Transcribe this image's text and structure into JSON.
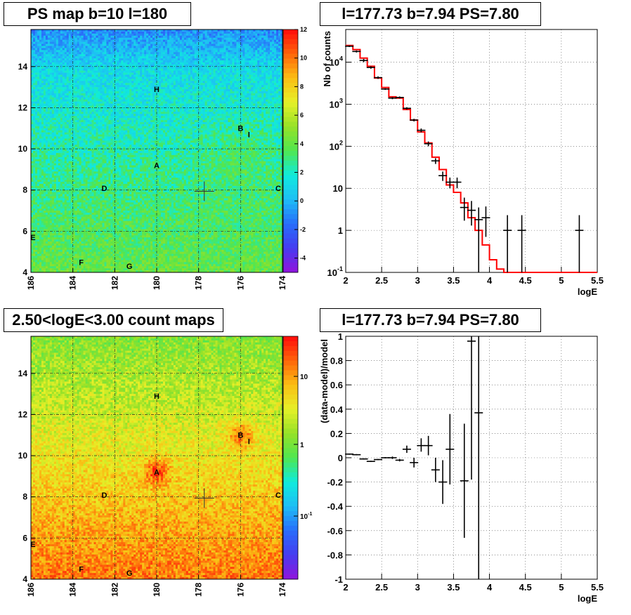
{
  "maps": {
    "top": {
      "title": "PS map b=10 l=180",
      "colorscale": "linear",
      "z_ticks": [
        "12",
        "10",
        "8",
        "6",
        "4",
        "2",
        "0",
        "-2",
        "-4"
      ],
      "z_range": [
        -5,
        12
      ],
      "x_ticks": [
        "186",
        "184",
        "182",
        "180",
        "178",
        "176",
        "174"
      ],
      "y_ticks": [
        "14",
        "12",
        "10",
        "8",
        "6",
        "4"
      ],
      "x_range": [
        186,
        174
      ],
      "y_range": [
        4,
        15.8
      ],
      "sources": [
        {
          "label": "H",
          "l": 180.0,
          "b": 12.9
        },
        {
          "label": "B",
          "l": 176.0,
          "b": 11.0
        },
        {
          "label": "I",
          "l": 175.6,
          "b": 10.7
        },
        {
          "label": "A",
          "l": 180.0,
          "b": 9.2
        },
        {
          "label": "D",
          "l": 182.5,
          "b": 8.1
        },
        {
          "label": "C",
          "l": 174.2,
          "b": 8.1
        },
        {
          "label": "E",
          "l": 185.9,
          "b": 5.7
        },
        {
          "label": "F",
          "l": 183.6,
          "b": 4.5
        },
        {
          "label": "G",
          "l": 181.3,
          "b": 4.3
        }
      ],
      "marker": {
        "l": 177.73,
        "b": 7.94
      }
    },
    "bottom": {
      "title": "2.50<logE<3.00 count maps",
      "colorscale": "log",
      "z_ticks": [
        "10",
        "1",
        "10^-1"
      ],
      "x_ticks": [
        "186",
        "184",
        "182",
        "180",
        "178",
        "176",
        "174"
      ],
      "y_ticks": [
        "14",
        "12",
        "10",
        "8",
        "6",
        "4"
      ],
      "sources": [
        {
          "label": "H",
          "l": 180.0,
          "b": 12.9
        },
        {
          "label": "B",
          "l": 176.0,
          "b": 11.0
        },
        {
          "label": "I",
          "l": 175.6,
          "b": 10.7
        },
        {
          "label": "A",
          "l": 180.0,
          "b": 9.2
        },
        {
          "label": "D",
          "l": 182.5,
          "b": 8.1
        },
        {
          "label": "C",
          "l": 174.2,
          "b": 8.1
        },
        {
          "label": "E",
          "l": 185.9,
          "b": 5.7
        },
        {
          "label": "F",
          "l": 183.6,
          "b": 4.5
        },
        {
          "label": "G",
          "l": 181.3,
          "b": 4.3
        }
      ],
      "marker": {
        "l": 177.73,
        "b": 7.94
      }
    }
  },
  "chart_data": [
    {
      "type": "line",
      "title": "l=177.73 b=7.94 PS=7.80",
      "xlabel": "logE",
      "ylabel": "Nb of counts",
      "xlim": [
        2,
        5.5
      ],
      "ylim": [
        0.1,
        60000
      ],
      "yscale": "log",
      "x_ticks": [
        "2",
        "2.5",
        "3",
        "3.5",
        "4",
        "4.5",
        "5",
        "5.5"
      ],
      "y_ticks": [
        "10^4",
        "10^3",
        "10^2",
        "10",
        "1",
        "10^-1"
      ],
      "grid": true,
      "series": [
        {
          "style": "points",
          "points": [
            {
              "x": 2.05,
              "y": 24000,
              "ylo": 23000,
              "yhi": 25000
            },
            {
              "x": 2.15,
              "y": 18000,
              "ylo": 17000,
              "yhi": 19000
            },
            {
              "x": 2.25,
              "y": 11000,
              "ylo": 10000,
              "yhi": 12000
            },
            {
              "x": 2.35,
              "y": 7500,
              "ylo": 7000,
              "yhi": 8000
            },
            {
              "x": 2.45,
              "y": 4300,
              "ylo": 4000,
              "yhi": 4600
            },
            {
              "x": 2.55,
              "y": 2300,
              "ylo": 2200,
              "yhi": 2400
            },
            {
              "x": 2.65,
              "y": 1400,
              "ylo": 1320,
              "yhi": 1480
            },
            {
              "x": 2.75,
              "y": 1450,
              "ylo": 1370,
              "yhi": 1530
            },
            {
              "x": 2.85,
              "y": 800,
              "ylo": 750,
              "yhi": 850
            },
            {
              "x": 2.95,
              "y": 420,
              "ylo": 390,
              "yhi": 450
            },
            {
              "x": 3.05,
              "y": 240,
              "ylo": 215,
              "yhi": 265
            },
            {
              "x": 3.15,
              "y": 115,
              "ylo": 100,
              "yhi": 130
            },
            {
              "x": 3.25,
              "y": 45,
              "ylo": 38,
              "yhi": 52
            },
            {
              "x": 3.35,
              "y": 20,
              "ylo": 15,
              "yhi": 25
            },
            {
              "x": 3.45,
              "y": 14,
              "ylo": 10,
              "yhi": 18
            },
            {
              "x": 3.55,
              "y": 14,
              "ylo": 10,
              "yhi": 18
            },
            {
              "x": 3.65,
              "y": 3.5,
              "ylo": 1.7,
              "yhi": 6
            },
            {
              "x": 3.75,
              "y": 3,
              "ylo": 1.3,
              "yhi": 5
            },
            {
              "x": 3.85,
              "y": 1.8,
              "ylo": 0.1,
              "yhi": 3.5
            },
            {
              "x": 3.95,
              "y": 2,
              "ylo": 0.7,
              "yhi": 3.7
            },
            {
              "x": 4.25,
              "y": 1,
              "ylo": 0.1,
              "yhi": 2.3
            },
            {
              "x": 4.45,
              "y": 1,
              "ylo": 0.1,
              "yhi": 2.3
            },
            {
              "x": 5.25,
              "y": 1,
              "ylo": 0.1,
              "yhi": 2.3
            }
          ]
        },
        {
          "style": "step",
          "color": "#ff0000",
          "edges": [
            2.0,
            2.1,
            2.2,
            2.3,
            2.4,
            2.5,
            2.6,
            2.7,
            2.8,
            2.9,
            3.0,
            3.1,
            3.2,
            3.3,
            3.4,
            3.5,
            3.6,
            3.7,
            3.8,
            3.9,
            4.0,
            4.1,
            4.2,
            5.5
          ],
          "values": [
            25000,
            20000,
            12500,
            8000,
            4200,
            2500,
            1500,
            1400,
            750,
            420,
            220,
            120,
            55,
            28,
            12,
            8,
            4.5,
            2,
            1,
            0.45,
            0.2,
            0.12,
            0.1
          ]
        }
      ]
    },
    {
      "type": "scatter",
      "title": "l=177.73 b=7.94 PS=7.80",
      "xlabel": "logE",
      "ylabel": "(data-model)/model",
      "xlim": [
        2,
        5.5
      ],
      "ylim": [
        -1,
        1
      ],
      "x_ticks": [
        "2",
        "2.5",
        "3",
        "3.5",
        "4",
        "4.5",
        "5",
        "5.5"
      ],
      "y_ticks": [
        "1",
        "0.8",
        "0.6",
        "0.4",
        "0.2",
        "0",
        "-0.2",
        "-0.4",
        "-0.6",
        "-0.8",
        "-1"
      ],
      "grid": true,
      "points": [
        {
          "x": 2.05,
          "y": 0.03,
          "ylo": 0.025,
          "yhi": 0.035
        },
        {
          "x": 2.15,
          "y": 0.025,
          "ylo": 0.02,
          "yhi": 0.03
        },
        {
          "x": 2.25,
          "y": -0.01,
          "ylo": -0.015,
          "yhi": -0.005
        },
        {
          "x": 2.35,
          "y": -0.03,
          "ylo": -0.035,
          "yhi": -0.025
        },
        {
          "x": 2.45,
          "y": -0.015,
          "ylo": -0.02,
          "yhi": -0.01
        },
        {
          "x": 2.55,
          "y": 0.0,
          "ylo": -0.005,
          "yhi": 0.005
        },
        {
          "x": 2.65,
          "y": 0.0,
          "ylo": -0.01,
          "yhi": 0.01
        },
        {
          "x": 2.75,
          "y": -0.02,
          "ylo": -0.03,
          "yhi": -0.01
        },
        {
          "x": 2.85,
          "y": 0.07,
          "ylo": 0.04,
          "yhi": 0.1
        },
        {
          "x": 2.95,
          "y": -0.04,
          "ylo": -0.08,
          "yhi": 0.0
        },
        {
          "x": 3.05,
          "y": 0.1,
          "ylo": 0.05,
          "yhi": 0.16
        },
        {
          "x": 3.15,
          "y": 0.1,
          "ylo": 0.02,
          "yhi": 0.18
        },
        {
          "x": 3.25,
          "y": -0.1,
          "ylo": -0.2,
          "yhi": 0.0
        },
        {
          "x": 3.35,
          "y": -0.2,
          "ylo": -0.38,
          "yhi": -0.02
        },
        {
          "x": 3.45,
          "y": 0.07,
          "ylo": -0.22,
          "yhi": 0.36
        },
        {
          "x": 3.65,
          "y": -0.19,
          "ylo": -0.66,
          "yhi": 0.28
        },
        {
          "x": 3.75,
          "y": 0.96,
          "ylo": -0.18,
          "yhi": 1.0
        },
        {
          "x": 3.85,
          "y": 0.37,
          "ylo": -1.0,
          "yhi": 1.0
        }
      ]
    }
  ]
}
